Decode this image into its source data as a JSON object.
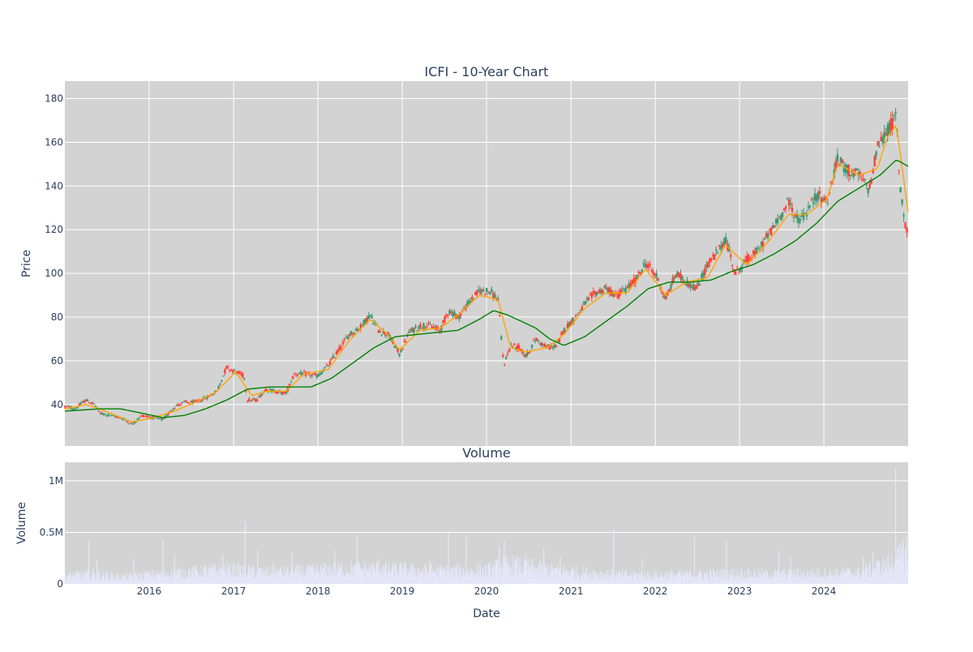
{
  "chart_data": [
    {
      "type": "candlestick",
      "title": "ICFI - 10-Year Chart",
      "xlabel": "",
      "ylabel": "Price",
      "ylim": [
        21,
        188
      ],
      "xlim": [
        "2015-01-01",
        "2024-12-31"
      ],
      "x_ticks": [
        "2016-01-01",
        "2017-01-01",
        "2018-01-01",
        "2019-01-01",
        "2020-01-01",
        "2021-01-01",
        "2022-01-01",
        "2023-01-01",
        "2024-01-01"
      ],
      "y_ticks": [
        40,
        60,
        80,
        100,
        120,
        140,
        160,
        180
      ],
      "grid": true,
      "background": "#d3d3d3",
      "up_color": "#3d9970",
      "down_color": "#ff4136",
      "price_points": [
        [
          "2015-01-05",
          39
        ],
        [
          "2015-02-15",
          38
        ],
        [
          "2015-04-01",
          42
        ],
        [
          "2015-05-10",
          40
        ],
        [
          "2015-06-01",
          36
        ],
        [
          "2015-07-20",
          35
        ],
        [
          "2015-09-01",
          34
        ],
        [
          "2015-10-20",
          31
        ],
        [
          "2015-12-01",
          35
        ],
        [
          "2016-01-20",
          34
        ],
        [
          "2016-03-01",
          33
        ],
        [
          "2016-04-20",
          39
        ],
        [
          "2016-06-01",
          41
        ],
        [
          "2016-07-20",
          41
        ],
        [
          "2016-09-01",
          43
        ],
        [
          "2016-10-20",
          46
        ],
        [
          "2016-12-01",
          57
        ],
        [
          "2017-01-10",
          55
        ],
        [
          "2017-02-15",
          53
        ],
        [
          "2017-03-01",
          42
        ],
        [
          "2017-04-10",
          42
        ],
        [
          "2017-05-20",
          47
        ],
        [
          "2017-07-01",
          46
        ],
        [
          "2017-08-15",
          45
        ],
        [
          "2017-09-20",
          54
        ],
        [
          "2017-11-01",
          54
        ],
        [
          "2018-01-01",
          53
        ],
        [
          "2018-02-15",
          58
        ],
        [
          "2018-04-01",
          65
        ],
        [
          "2018-05-15",
          72
        ],
        [
          "2018-07-01",
          75
        ],
        [
          "2018-08-15",
          81
        ],
        [
          "2018-09-20",
          74
        ],
        [
          "2018-11-01",
          72
        ],
        [
          "2018-12-20",
          63
        ],
        [
          "2019-02-01",
          73
        ],
        [
          "2019-03-20",
          76
        ],
        [
          "2019-05-01",
          76
        ],
        [
          "2019-06-15",
          74
        ],
        [
          "2019-07-20",
          83
        ],
        [
          "2019-09-01",
          80
        ],
        [
          "2019-10-20",
          87
        ],
        [
          "2019-12-01",
          92
        ],
        [
          "2020-01-15",
          92
        ],
        [
          "2020-02-20",
          88
        ],
        [
          "2020-03-15",
          58
        ],
        [
          "2020-04-15",
          67
        ],
        [
          "2020-05-20",
          66
        ],
        [
          "2020-06-20",
          62
        ],
        [
          "2020-08-01",
          70
        ],
        [
          "2020-09-20",
          66
        ],
        [
          "2020-11-01",
          67
        ],
        [
          "2020-12-01",
          74
        ],
        [
          "2021-01-20",
          80
        ],
        [
          "2021-03-01",
          86
        ],
        [
          "2021-04-15",
          91
        ],
        [
          "2021-06-01",
          93
        ],
        [
          "2021-07-15",
          90
        ],
        [
          "2021-09-01",
          93
        ],
        [
          "2021-10-15",
          98
        ],
        [
          "2021-11-20",
          105
        ],
        [
          "2022-01-10",
          98
        ],
        [
          "2022-02-15",
          88
        ],
        [
          "2022-04-01",
          100
        ],
        [
          "2022-05-15",
          96
        ],
        [
          "2022-07-01",
          93
        ],
        [
          "2022-08-15",
          104
        ],
        [
          "2022-10-01",
          110
        ],
        [
          "2022-11-01",
          116
        ],
        [
          "2022-12-15",
          100
        ],
        [
          "2023-02-01",
          106
        ],
        [
          "2023-03-20",
          110
        ],
        [
          "2023-05-01",
          117
        ],
        [
          "2023-06-15",
          124
        ],
        [
          "2023-08-01",
          133
        ],
        [
          "2023-09-10",
          124
        ],
        [
          "2023-10-20",
          128
        ],
        [
          "2023-12-01",
          136
        ],
        [
          "2024-01-15",
          133
        ],
        [
          "2024-03-01",
          152
        ],
        [
          "2024-04-15",
          147
        ],
        [
          "2024-06-01",
          145
        ],
        [
          "2024-07-15",
          138
        ],
        [
          "2024-08-20",
          158
        ],
        [
          "2024-10-01",
          165
        ],
        [
          "2024-11-10",
          172
        ],
        [
          "2024-11-25",
          140
        ],
        [
          "2024-12-15",
          125
        ],
        [
          "2024-12-31",
          118
        ]
      ],
      "overlays": [
        {
          "name": "",
          "color": "#ffa500",
          "points": [
            [
              "2015-01-05",
              38
            ],
            [
              "2015-04-01",
              40
            ],
            [
              "2015-06-01",
              38
            ],
            [
              "2015-09-01",
              34
            ],
            [
              "2015-10-20",
              32
            ],
            [
              "2016-01-20",
              34
            ],
            [
              "2016-04-20",
              37
            ],
            [
              "2016-07-20",
              41
            ],
            [
              "2016-10-20",
              46
            ],
            [
              "2017-01-10",
              55
            ],
            [
              "2017-03-20",
              44
            ],
            [
              "2017-05-20",
              46
            ],
            [
              "2017-08-15",
              46
            ],
            [
              "2017-11-01",
              54
            ],
            [
              "2018-02-15",
              56
            ],
            [
              "2018-05-15",
              69
            ],
            [
              "2018-08-15",
              79
            ],
            [
              "2018-11-01",
              72
            ],
            [
              "2018-12-20",
              65
            ],
            [
              "2019-03-20",
              74
            ],
            [
              "2019-06-15",
              75
            ],
            [
              "2019-09-01",
              81
            ],
            [
              "2019-12-01",
              90
            ],
            [
              "2020-02-20",
              88
            ],
            [
              "2020-04-15",
              66
            ],
            [
              "2020-06-20",
              64
            ],
            [
              "2020-09-20",
              66
            ],
            [
              "2020-12-01",
              72
            ],
            [
              "2021-03-01",
              84
            ],
            [
              "2021-06-01",
              91
            ],
            [
              "2021-09-01",
              91
            ],
            [
              "2021-11-20",
              102
            ],
            [
              "2022-02-15",
              90
            ],
            [
              "2022-05-15",
              96
            ],
            [
              "2022-08-15",
              98
            ],
            [
              "2022-11-01",
              113
            ],
            [
              "2023-02-01",
              104
            ],
            [
              "2023-05-01",
              114
            ],
            [
              "2023-08-01",
              127
            ],
            [
              "2023-10-20",
              127
            ],
            [
              "2024-01-15",
              134
            ],
            [
              "2024-03-01",
              150
            ],
            [
              "2024-06-01",
              145
            ],
            [
              "2024-08-20",
              148
            ],
            [
              "2024-10-01",
              162
            ],
            [
              "2024-11-10",
              168
            ],
            [
              "2024-12-31",
              128
            ]
          ]
        },
        {
          "name": "",
          "color": "#008000",
          "points": [
            [
              "2015-01-05",
              37
            ],
            [
              "2015-06-01",
              38
            ],
            [
              "2015-09-01",
              38
            ],
            [
              "2015-12-01",
              36
            ],
            [
              "2016-03-01",
              34
            ],
            [
              "2016-06-01",
              35
            ],
            [
              "2016-09-01",
              38
            ],
            [
              "2016-12-01",
              42
            ],
            [
              "2017-03-01",
              47
            ],
            [
              "2017-06-01",
              48
            ],
            [
              "2017-09-01",
              48
            ],
            [
              "2017-12-01",
              48
            ],
            [
              "2018-03-01",
              52
            ],
            [
              "2018-06-01",
              59
            ],
            [
              "2018-09-01",
              66
            ],
            [
              "2018-12-01",
              71
            ],
            [
              "2019-03-01",
              72
            ],
            [
              "2019-06-01",
              73
            ],
            [
              "2019-09-01",
              74
            ],
            [
              "2019-12-01",
              79
            ],
            [
              "2020-02-01",
              83
            ],
            [
              "2020-04-01",
              81
            ],
            [
              "2020-06-01",
              78
            ],
            [
              "2020-08-01",
              75
            ],
            [
              "2020-10-01",
              70
            ],
            [
              "2020-12-01",
              67
            ],
            [
              "2021-03-01",
              71
            ],
            [
              "2021-06-01",
              78
            ],
            [
              "2021-09-01",
              85
            ],
            [
              "2021-12-01",
              93
            ],
            [
              "2022-03-01",
              96
            ],
            [
              "2022-06-01",
              96
            ],
            [
              "2022-09-01",
              97
            ],
            [
              "2022-12-01",
              101
            ],
            [
              "2023-03-01",
              104
            ],
            [
              "2023-06-01",
              109
            ],
            [
              "2023-09-01",
              115
            ],
            [
              "2023-12-01",
              123
            ],
            [
              "2024-03-01",
              133
            ],
            [
              "2024-06-01",
              139
            ],
            [
              "2024-09-01",
              145
            ],
            [
              "2024-11-10",
              152
            ],
            [
              "2024-12-31",
              149
            ]
          ]
        }
      ]
    },
    {
      "type": "bar",
      "title": "Volume",
      "xlabel": "Date",
      "ylabel": "Volume",
      "ylim": [
        0,
        1180000
      ],
      "xlim": [
        "2015-01-01",
        "2024-12-31"
      ],
      "x_ticks": [
        "2016-01-01",
        "2017-01-01",
        "2018-01-01",
        "2019-01-01",
        "2020-01-01",
        "2021-01-01",
        "2022-01-01",
        "2023-01-01",
        "2024-01-01"
      ],
      "x_tick_labels": [
        "2016",
        "2017",
        "2018",
        "2019",
        "2020",
        "2021",
        "2022",
        "2023",
        "2024"
      ],
      "y_ticks": [
        0,
        500000,
        1000000
      ],
      "y_tick_labels": [
        "0",
        "0.5M",
        "1M"
      ],
      "grid": true,
      "background": "#d3d3d3",
      "bar_color": "#e6e6fa",
      "volume_points": [
        [
          "2015-01-05",
          80000
        ],
        [
          "2015-05-01",
          110000
        ],
        [
          "2015-09-01",
          70000
        ],
        [
          "2016-01-01",
          95000
        ],
        [
          "2016-06-01",
          120000
        ],
        [
          "2016-12-01",
          150000
        ],
        [
          "2017-06-01",
          120000
        ],
        [
          "2018-01-01",
          140000
        ],
        [
          "2018-06-01",
          160000
        ],
        [
          "2019-01-01",
          150000
        ],
        [
          "2019-06-01",
          130000
        ],
        [
          "2020-01-01",
          140000
        ],
        [
          "2020-04-01",
          200000
        ],
        [
          "2020-10-01",
          150000
        ],
        [
          "2021-06-01",
          100000
        ],
        [
          "2022-01-01",
          90000
        ],
        [
          "2022-06-01",
          100000
        ],
        [
          "2023-01-01",
          110000
        ],
        [
          "2023-06-01",
          100000
        ],
        [
          "2024-01-01",
          110000
        ],
        [
          "2024-06-01",
          120000
        ],
        [
          "2024-10-01",
          200000
        ],
        [
          "2024-12-31",
          320000
        ]
      ],
      "volume_spikes": [
        [
          "2015-04-15",
          410000
        ],
        [
          "2015-05-20",
          230000
        ],
        [
          "2015-10-25",
          250000
        ],
        [
          "2016-03-01",
          430000
        ],
        [
          "2016-04-20",
          290000
        ],
        [
          "2016-11-15",
          280000
        ],
        [
          "2017-02-20",
          600000
        ],
        [
          "2017-04-15",
          320000
        ],
        [
          "2017-06-20",
          210000
        ],
        [
          "2017-09-10",
          310000
        ],
        [
          "2018-03-15",
          320000
        ],
        [
          "2018-06-20",
          480000
        ],
        [
          "2018-09-20",
          250000
        ],
        [
          "2019-05-01",
          220000
        ],
        [
          "2019-07-20",
          500000
        ],
        [
          "2019-10-05",
          460000
        ],
        [
          "2020-02-25",
          360000
        ],
        [
          "2020-03-18",
          420000
        ],
        [
          "2020-06-20",
          290000
        ],
        [
          "2020-09-05",
          350000
        ],
        [
          "2020-11-15",
          270000
        ],
        [
          "2021-07-05",
          530000
        ],
        [
          "2021-11-05",
          250000
        ],
        [
          "2022-06-20",
          460000
        ],
        [
          "2022-11-05",
          420000
        ],
        [
          "2023-06-20",
          320000
        ],
        [
          "2023-08-10",
          260000
        ],
        [
          "2024-06-20",
          260000
        ],
        [
          "2024-08-01",
          310000
        ],
        [
          "2024-11-07",
          1120000
        ],
        [
          "2024-12-10",
          430000
        ],
        [
          "2024-12-25",
          470000
        ]
      ]
    }
  ]
}
